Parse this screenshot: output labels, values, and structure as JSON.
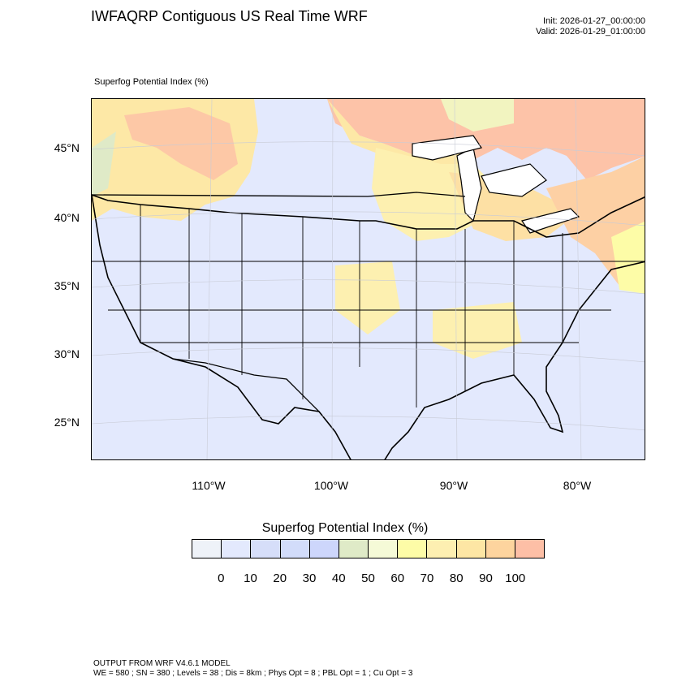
{
  "header": {
    "title": "IWFAQRP Contiguous US Real Time WRF",
    "init": "Init: 2026-01-27_00:00:00",
    "valid": "Valid: 2026-01-29_01:00:00"
  },
  "map": {
    "field_label": "Superfog Potential Index   (%)",
    "projection": "lambert-conformal",
    "background_color": "#e3e9fd",
    "lat_labels": [
      "45°N",
      "40°N",
      "35°N",
      "30°N",
      "25°N"
    ],
    "lon_labels": [
      "110°W",
      "100°W",
      "90°W",
      "80°W"
    ],
    "high_index_regions": [
      "northwest",
      "southern-canada",
      "great-lakes",
      "northeast",
      "ozarks",
      "lower-mississippi-valley",
      "atlantic-offshore"
    ]
  },
  "legend": {
    "title": "Superfog Potential Index  (%)",
    "tick_labels": [
      "0",
      "10",
      "20",
      "30",
      "40",
      "50",
      "60",
      "70",
      "80",
      "90",
      "100"
    ],
    "colors": [
      "#eef2f8",
      "#e3e9fd",
      "#d6def9",
      "#d2dcfa",
      "#cdd6fb",
      "#dfeac7",
      "#f5fad7",
      "#fdfca7",
      "#fdefb1",
      "#fde6a4",
      "#fdd49e",
      "#fdbfa6"
    ]
  },
  "footer": {
    "model": "OUTPUT FROM WRF V4.6.1 MODEL",
    "config": "WE = 580 ; SN = 380 ; Levels = 38 ; Dis = 8km ; Phys Opt = 8 ; PBL Opt = 1 ; Cu Opt = 3"
  }
}
